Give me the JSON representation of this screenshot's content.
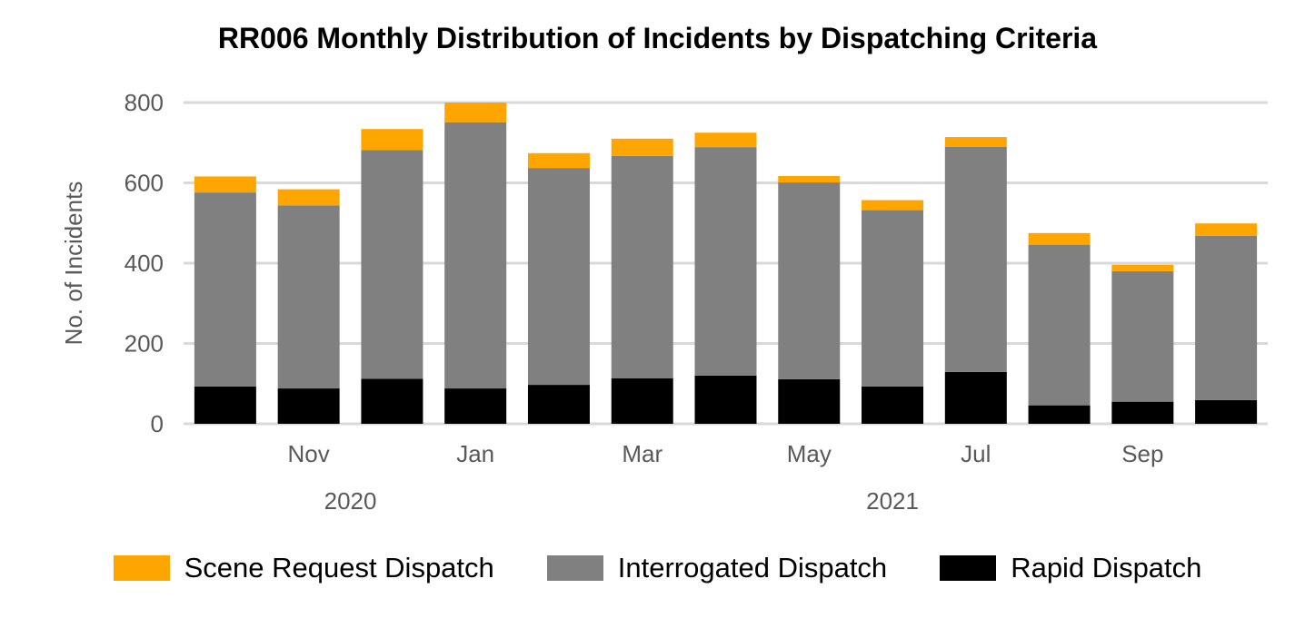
{
  "chart_data": {
    "type": "bar",
    "stacked": true,
    "title": "RR006 Monthly Distribution of Incidents by Dispatching Criteria",
    "xlabel": "",
    "ylabel": "No. of Incidents",
    "ylim": [
      0,
      800
    ],
    "yticks": [
      0,
      200,
      400,
      600,
      800
    ],
    "grid": true,
    "legend_position": "bottom",
    "categories": [
      "Oct 2020",
      "Nov 2020",
      "Dec 2020",
      "Jan 2021",
      "Feb 2021",
      "Mar 2021",
      "Apr 2021",
      "May 2021",
      "Jun 2021",
      "Jul 2021",
      "Aug 2021",
      "Sep 2021",
      "Oct 2021"
    ],
    "x_tick_labels": [
      {
        "index": 1,
        "label": "Nov"
      },
      {
        "index": 3,
        "label": "Jan"
      },
      {
        "index": 5,
        "label": "Mar"
      },
      {
        "index": 7,
        "label": "May"
      },
      {
        "index": 9,
        "label": "Jul"
      },
      {
        "index": 11,
        "label": "Sep"
      }
    ],
    "year_labels": [
      {
        "label": "2020",
        "center_index": 1.5
      },
      {
        "label": "2021",
        "center_index": 8
      }
    ],
    "series": [
      {
        "name": "Rapid Dispatch",
        "color": "#000000",
        "values": [
          93,
          88,
          112,
          88,
          97,
          113,
          120,
          111,
          93,
          129,
          46,
          55,
          59
        ]
      },
      {
        "name": "Interrogated Dispatch",
        "color": "#808080",
        "values": [
          483,
          456,
          570,
          663,
          540,
          554,
          569,
          490,
          439,
          561,
          400,
          325,
          409
        ]
      },
      {
        "name": "Scene Request Dispatch",
        "color": "#FFA500",
        "values": [
          40,
          40,
          52,
          49,
          37,
          43,
          36,
          16,
          25,
          24,
          29,
          16,
          31
        ]
      }
    ],
    "legend_order": [
      "Scene Request Dispatch",
      "Interrogated Dispatch",
      "Rapid Dispatch"
    ]
  }
}
